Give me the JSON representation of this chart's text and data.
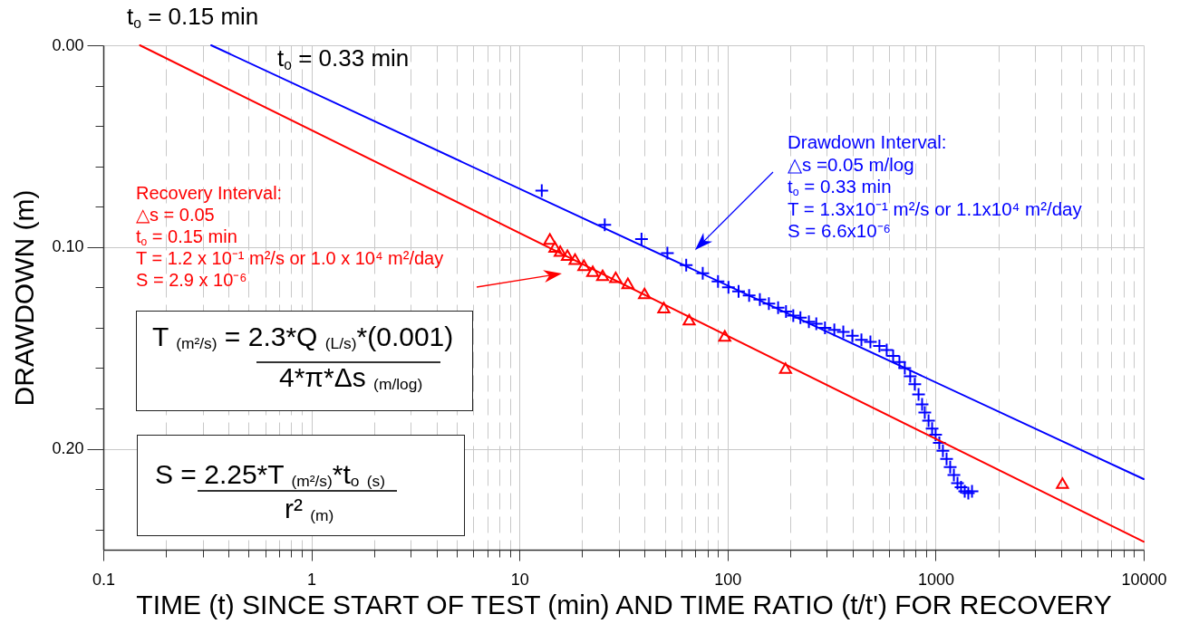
{
  "chart_data": {
    "type": "scatter",
    "xlabel": "TIME (t) SINCE START OF TEST (min) AND TIME RATIO (t/t') FOR RECOVERY",
    "ylabel": "DRAWDOWN (m)",
    "log": "x",
    "grid": true,
    "xlim": [
      0.1,
      10000
    ],
    "ylim": [
      0.25,
      0
    ],
    "xticks": [
      0.1,
      {
        "value": 0.2,
        "label": null
      },
      {
        "value": 0.3,
        "label": null
      },
      {
        "value": 0.4,
        "label": null
      },
      {
        "value": 0.5,
        "label": null
      },
      {
        "value": 0.6,
        "label": null
      },
      {
        "value": 0.7,
        "label": null
      },
      {
        "value": 0.8,
        "label": null
      },
      {
        "value": 0.9,
        "label": null
      },
      1,
      {
        "value": 2,
        "label": null
      },
      {
        "value": 3,
        "label": null
      },
      {
        "value": 4,
        "label": null
      },
      {
        "value": 5,
        "label": null
      },
      {
        "value": 6,
        "label": null
      },
      {
        "value": 7,
        "label": null
      },
      {
        "value": 8,
        "label": null
      },
      {
        "value": 9,
        "label": null
      },
      10,
      {
        "value": 20,
        "label": null
      },
      {
        "value": 30,
        "label": null
      },
      {
        "value": 40,
        "label": null
      },
      {
        "value": 50,
        "label": null
      },
      {
        "value": 60,
        "label": null
      },
      {
        "value": 70,
        "label": null
      },
      {
        "value": 80,
        "label": null
      },
      {
        "value": 90,
        "label": null
      },
      100,
      {
        "value": 200,
        "label": null
      },
      {
        "value": 300,
        "label": null
      },
      {
        "value": 400,
        "label": null
      },
      {
        "value": 500,
        "label": null
      },
      {
        "value": 600,
        "label": null
      },
      {
        "value": 700,
        "label": null
      },
      {
        "value": 800,
        "label": null
      },
      {
        "value": 900,
        "label": null
      },
      1000,
      {
        "value": 2000,
        "label": null
      },
      {
        "value": 3000,
        "label": null
      },
      {
        "value": 4000,
        "label": null
      },
      {
        "value": 5000,
        "label": null
      },
      {
        "value": 6000,
        "label": null
      },
      {
        "value": 7000,
        "label": null
      },
      {
        "value": 8000,
        "label": null
      },
      {
        "value": 9000,
        "label": null
      },
      10000
    ],
    "yticks": [
      {
        "value": 0,
        "label": "0.00"
      },
      {
        "value": 0.02,
        "label": null
      },
      {
        "value": 0.04,
        "label": null
      },
      {
        "value": 0.06,
        "label": null
      },
      {
        "value": 0.08,
        "label": null
      },
      {
        "value": 0.1,
        "label": "0.10"
      },
      {
        "value": 0.12,
        "label": null
      },
      {
        "value": 0.14,
        "label": null
      },
      {
        "value": 0.16,
        "label": null
      },
      {
        "value": 0.18,
        "label": null
      },
      {
        "value": 0.2,
        "label": "0.20"
      },
      {
        "value": 0.22,
        "label": null
      },
      {
        "value": 0.24,
        "label": null
      }
    ],
    "series": [
      {
        "marker": "cross",
        "color": "#0000ff",
        "x": [
          12.8,
          25.7,
          38.6,
          51.4,
          63.3,
          76,
          90,
          101,
          113,
          127,
          143,
          158,
          175,
          191,
          207,
          224,
          246,
          267,
          294,
          326,
          360,
          398,
          440,
          486,
          537,
          582,
          625,
          670,
          711,
          755,
          794,
          828,
          861,
          887,
          925,
          962,
          1000,
          1042,
          1084,
          1129,
          1175,
          1224,
          1274,
          1325,
          1380,
          1436,
          1496
        ],
        "values": [
          0.072,
          0.089,
          0.096,
          0.103,
          0.109,
          0.113,
          0.117,
          0.12,
          0.122,
          0.124,
          0.126,
          0.128,
          0.13,
          0.132,
          0.134,
          0.135,
          0.137,
          0.138,
          0.14,
          0.141,
          0.142,
          0.144,
          0.146,
          0.147,
          0.149,
          0.151,
          0.154,
          0.157,
          0.16,
          0.164,
          0.168,
          0.173,
          0.178,
          0.182,
          0.186,
          0.19,
          0.193,
          0.197,
          0.201,
          0.205,
          0.209,
          0.213,
          0.217,
          0.219,
          0.221,
          0.222,
          0.221
        ]
      },
      {
        "marker": "triangle",
        "color": "#ff0000",
        "x": [
          14,
          14.8,
          15.7,
          17,
          18.5,
          20.4,
          22.5,
          25.1,
          29,
          33.2,
          39.9,
          49.4,
          65.4,
          97,
          190,
          4070
        ],
        "values": [
          0.096,
          0.1,
          0.102,
          0.104,
          0.106,
          0.109,
          0.112,
          0.114,
          0.115,
          0.118,
          0.123,
          0.13,
          0.136,
          0.144,
          0.16,
          0.217
        ]
      },
      {
        "type": "line",
        "color": "#0000ff",
        "x": [
          0.33,
          10000
        ],
        "values": [
          0,
          0.215
        ]
      },
      {
        "type": "line",
        "color": "#ff0000",
        "x": [
          0.15,
          10000
        ],
        "values": [
          0,
          0.246
        ]
      }
    ],
    "annotations": [
      "t$_{o}$ = 0.15 min",
      "t$_{o}$ = 0.33 min",
      "Recovery Interval:",
      "△s = 0.05",
      "t$_{o}$ = 0.15 min",
      "T = 1.2 x 10⁻¹ m²/s or 1.0 x 10⁴ m²/day",
      "S = 2.9 x 10⁻⁶",
      "Drawdown Interval:",
      "△s =0.05 m/log",
      "t$_{o}$ = 0.33 min",
      "T = 1.3x10⁻¹ m²/s or 1.1x10⁴ m²/day",
      "S = 6.6x10⁻⁶",
      "T $_{(m²/s)}$ = 2.3*Q $_{(L/s)}$*(0.001)",
      "4*π*Δs $_{(m/log)}$",
      "S = 2.25*T $_{(m²/s)}$*t$_{o}$ $_{(s)}$",
      "r² $_{(m)}$"
    ]
  }
}
